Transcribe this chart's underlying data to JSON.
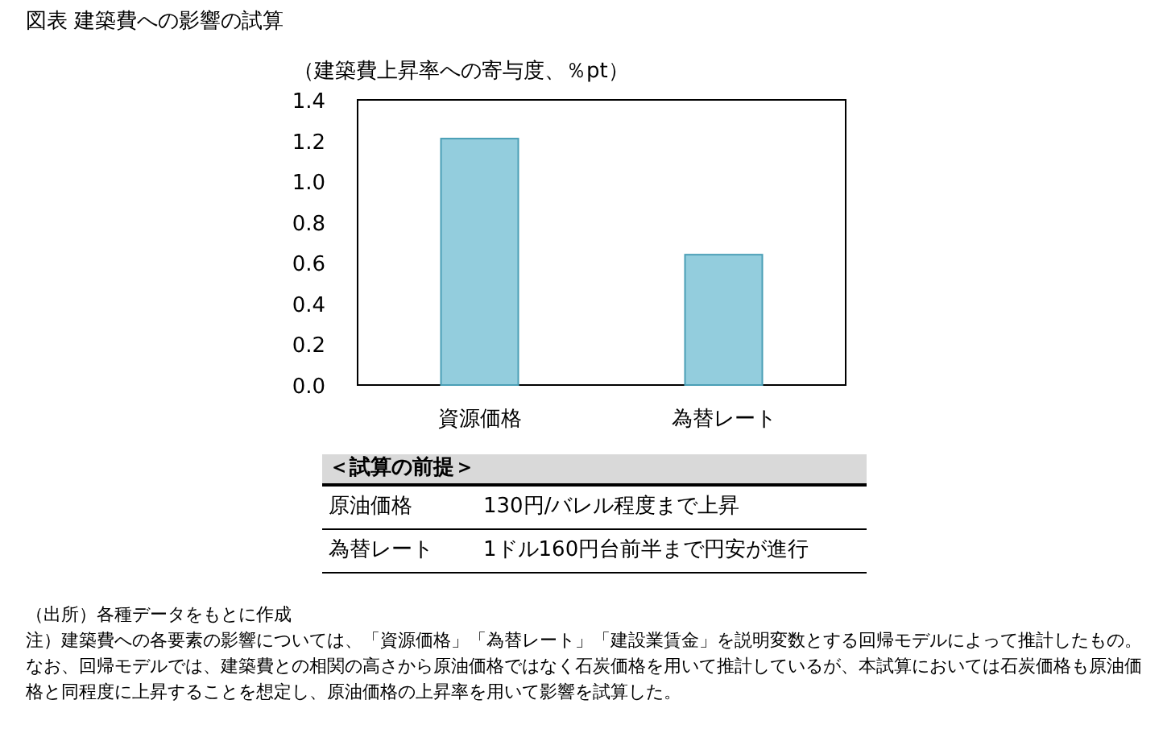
{
  "chart_data": [
    {
      "type": "bar",
      "title": "図表 建築費への影響の試算",
      "ylabel": "（建築費上昇率への寄与度、％pt）",
      "categories": [
        "資源価格",
        "為替レート"
      ],
      "series": [
        {
          "color": "#93cddd",
          "values": [
            1.21,
            0.64
          ]
        }
      ],
      "ylim": [
        0,
        1.4
      ],
      "yticks": [
        {
          "value": 0,
          "label": "0.0"
        },
        {
          "value": 0.2,
          "label": "0.2"
        },
        {
          "value": 0.4,
          "label": "0.4"
        },
        {
          "value": 0.6,
          "label": "0.6"
        },
        {
          "value": 0.8,
          "label": "0.8"
        },
        {
          "value": 1.0,
          "label": "1.0"
        },
        {
          "value": 1.2,
          "label": "1.2"
        },
        {
          "value": 1.4,
          "label": "1.4"
        }
      ],
      "annotations": [
        "（出所）各種データをもとに作成",
        "注）建築費への各要素の影響については、「資源価格」「為替レート」「建設業賃金」を説明変数とする回帰モデルによって推計したもの。なお、回帰モデルでは、建築費との相関の高さから原油価格ではなく石炭価格を用いて推計しているが、本試算においては石炭価格も原油価格と同程度に上昇することを想定し、原油価格の上昇率を用いて影響を試算した。"
      ]
    },
    {
      "type": "other",
      "title": "＜試算の前提＞",
      "annotations": [
        "原油価格",
        "130円/バレル程度まで上昇",
        "為替レート",
        "1ドル160円台前半まで円安が進行"
      ]
    }
  ]
}
